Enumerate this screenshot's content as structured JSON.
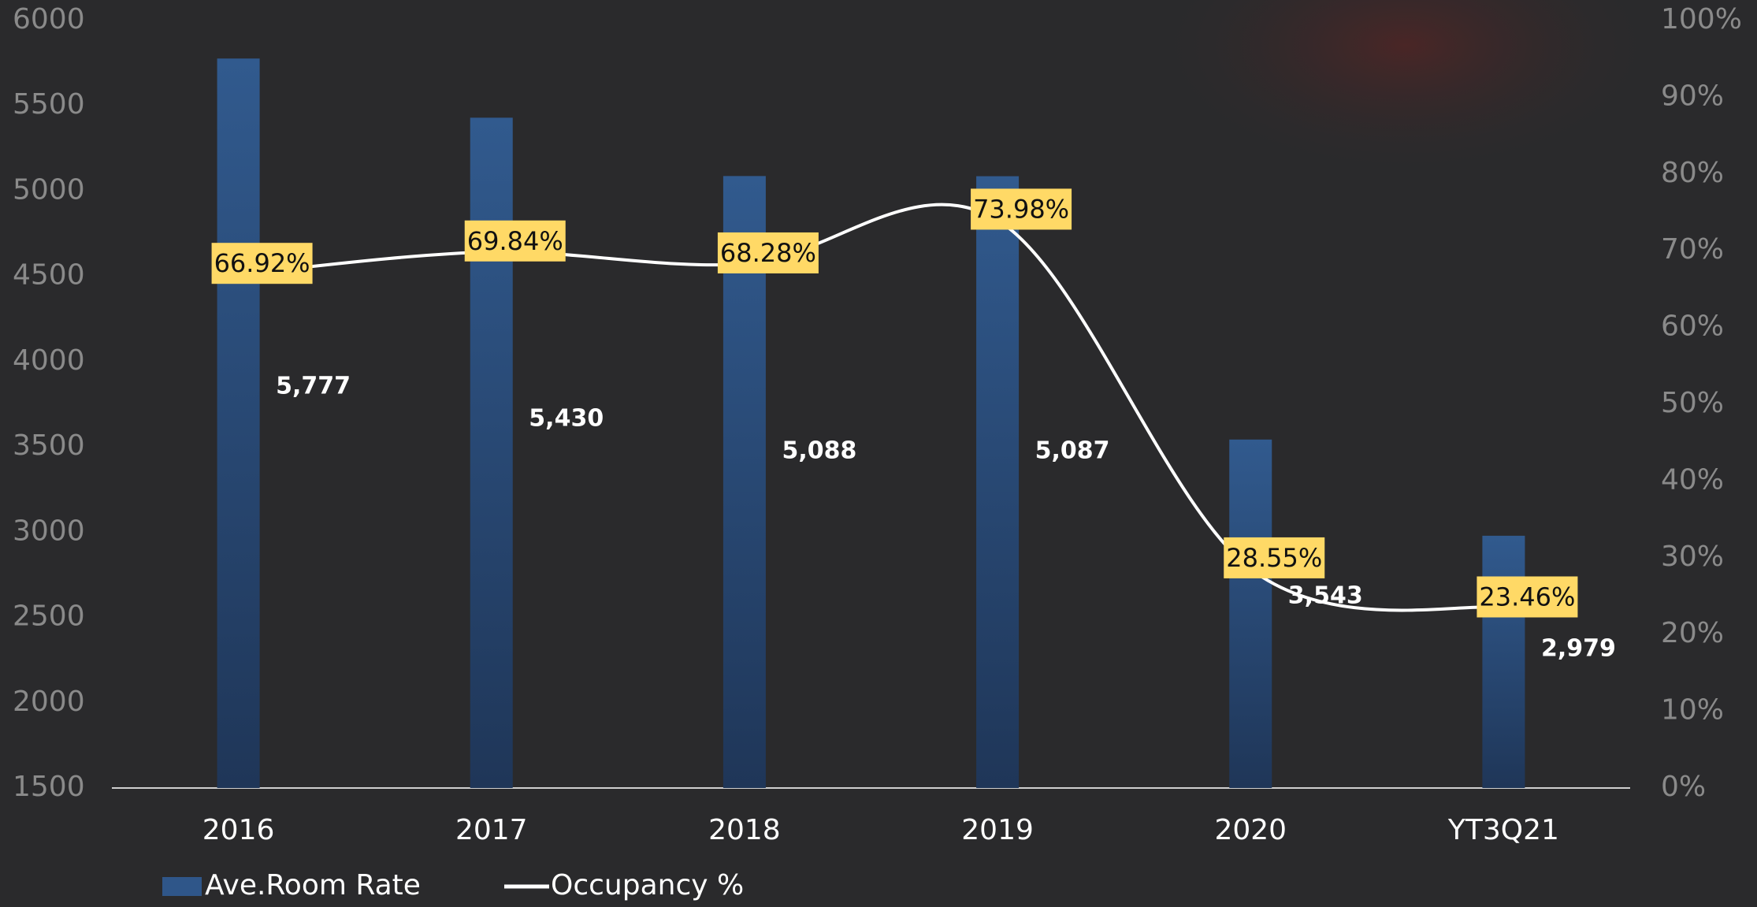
{
  "chart_data": {
    "type": "bar-line",
    "categories": [
      "2016",
      "2017",
      "2018",
      "2019",
      "2020",
      "YT3Q21"
    ],
    "series": [
      {
        "name": "Ave.Room Rate",
        "type": "bar",
        "color": "#2f5689",
        "values": [
          5777,
          5430,
          5088,
          5087,
          3543,
          2979
        ],
        "value_labels": [
          "5,777",
          "5,430",
          "5,088",
          "5,087",
          "3,543",
          "2,979"
        ]
      },
      {
        "name": "Occupancy %",
        "type": "line",
        "axis": "y2",
        "color": "#ffffff",
        "values": [
          66.92,
          69.84,
          68.28,
          73.98,
          28.55,
          23.46
        ],
        "value_labels": [
          "66.92%",
          "69.84%",
          "68.28%",
          "73.98%",
          "28.55%",
          "23.46%"
        ]
      }
    ],
    "ylim": [
      1500,
      6000
    ],
    "yticks": [
      1500,
      2000,
      2500,
      3000,
      3500,
      4000,
      4500,
      5000,
      5500,
      6000
    ],
    "y2lim": [
      0,
      100
    ],
    "y2ticks": [
      {
        "value": 0,
        "label": "0%"
      },
      {
        "value": 10,
        "label": "10%"
      },
      {
        "value": 20,
        "label": "20%"
      },
      {
        "value": 30,
        "label": "30%"
      },
      {
        "value": 40,
        "label": "40%"
      },
      {
        "value": 50,
        "label": "50%"
      },
      {
        "value": 60,
        "label": "60%"
      },
      {
        "value": 70,
        "label": "70%"
      },
      {
        "value": 80,
        "label": "80%"
      },
      {
        "value": 90,
        "label": "90%"
      },
      {
        "value": 100,
        "label": "100%"
      }
    ],
    "legend": "bottom-left"
  }
}
